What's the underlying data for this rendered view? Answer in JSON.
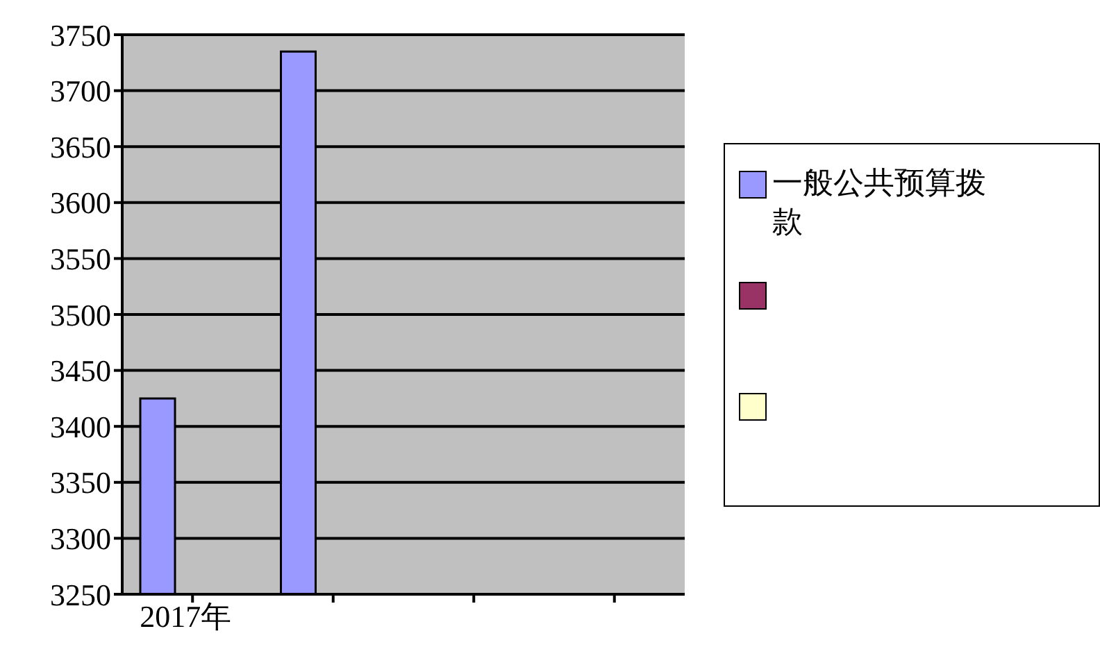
{
  "chart_data": {
    "type": "bar",
    "categories": [
      "2017年",
      null,
      null,
      null
    ],
    "series": [
      {
        "name": "一般公共预算拨款",
        "color": "#9999ff",
        "values": [
          3425,
          3735,
          null,
          null
        ]
      },
      {
        "color": "#993366",
        "values": [
          null,
          null,
          null,
          null
        ]
      },
      {
        "color": "#ffffcc",
        "values": [
          null,
          null,
          null,
          null
        ]
      }
    ],
    "ylim": [
      3250,
      3750
    ],
    "yticks": [
      3250,
      3300,
      3350,
      3400,
      3450,
      3500,
      3550,
      3600,
      3650,
      3700,
      3750
    ],
    "grid": "y",
    "legend": "right"
  }
}
